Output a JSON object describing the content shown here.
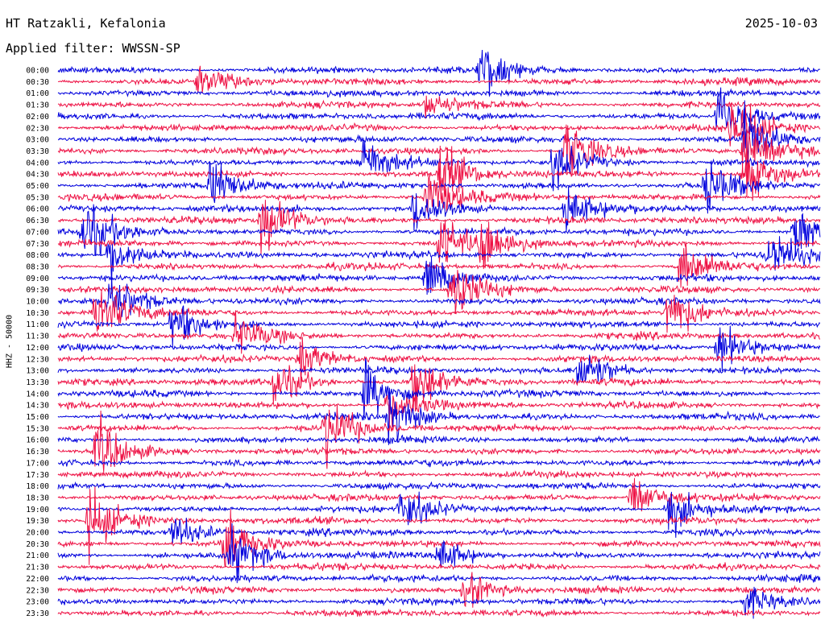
{
  "header": {
    "station": "HT Ratzakli, Kefalonia",
    "date": "2025-10-03",
    "filter": "Applied filter: WWSSN-SP"
  },
  "chart_data": {
    "type": "line",
    "title": "HT Ratzakli, Kefalonia",
    "ylabel": "HHZ - 50000",
    "rows": [
      "00:00",
      "00:30",
      "01:00",
      "01:30",
      "02:00",
      "02:30",
      "03:00",
      "03:30",
      "04:00",
      "04:30",
      "05:00",
      "05:30",
      "06:00",
      "06:30",
      "07:00",
      "07:30",
      "08:00",
      "08:30",
      "09:00",
      "09:30",
      "10:00",
      "10:30",
      "11:00",
      "11:30",
      "12:00",
      "12:30",
      "13:00",
      "13:30",
      "14:00",
      "14:30",
      "15:00",
      "15:30",
      "16:00",
      "16:30",
      "17:00",
      "17:30",
      "18:00",
      "18:30",
      "19:00",
      "19:30",
      "20:00",
      "20:30",
      "21:00",
      "21:30",
      "22:00",
      "22:30",
      "23:00",
      "23:30"
    ],
    "series_colors": [
      "#0000dd",
      "#ee1144"
    ],
    "x_minutes_per_row": 30,
    "events": [
      {
        "row": 0,
        "minute": 16.6,
        "amp": 1.4
      },
      {
        "row": 1,
        "minute": 5.5,
        "amp": 0.8
      },
      {
        "row": 3,
        "minute": 14.5,
        "amp": 0.7
      },
      {
        "row": 4,
        "minute": 26.0,
        "amp": 1.6
      },
      {
        "row": 5,
        "minute": 26.5,
        "amp": 1.8
      },
      {
        "row": 6,
        "minute": 27.0,
        "amp": 1.8
      },
      {
        "row": 7,
        "minute": 20.0,
        "amp": 1.5
      },
      {
        "row": 7,
        "minute": 27.0,
        "amp": 1.7
      },
      {
        "row": 8,
        "minute": 12.0,
        "amp": 1.2
      },
      {
        "row": 8,
        "minute": 19.5,
        "amp": 1.3
      },
      {
        "row": 9,
        "minute": 15.0,
        "amp": 1.6
      },
      {
        "row": 9,
        "minute": 27.0,
        "amp": 1.5
      },
      {
        "row": 10,
        "minute": 6.0,
        "amp": 1.4
      },
      {
        "row": 10,
        "minute": 25.5,
        "amp": 1.3
      },
      {
        "row": 11,
        "minute": 14.5,
        "amp": 1.5
      },
      {
        "row": 12,
        "minute": 14.0,
        "amp": 1.3
      },
      {
        "row": 12,
        "minute": 20.0,
        "amp": 1.2
      },
      {
        "row": 13,
        "minute": 8.0,
        "amp": 1.6
      },
      {
        "row": 14,
        "minute": 1.0,
        "amp": 1.6
      },
      {
        "row": 14,
        "minute": 29.0,
        "amp": 1.5
      },
      {
        "row": 15,
        "minute": 15.0,
        "amp": 1.4
      },
      {
        "row": 15,
        "minute": 16.6,
        "amp": 1.4
      },
      {
        "row": 16,
        "minute": 2.0,
        "amp": 1.3
      },
      {
        "row": 16,
        "minute": 28.0,
        "amp": 1.3
      },
      {
        "row": 17,
        "minute": 24.5,
        "amp": 1.4
      },
      {
        "row": 18,
        "minute": 14.5,
        "amp": 1.3
      },
      {
        "row": 19,
        "minute": 15.5,
        "amp": 1.6
      },
      {
        "row": 20,
        "minute": 2.0,
        "amp": 1.4
      },
      {
        "row": 21,
        "minute": 1.5,
        "amp": 1.8
      },
      {
        "row": 21,
        "minute": 24.0,
        "amp": 1.6
      },
      {
        "row": 22,
        "minute": 4.5,
        "amp": 1.2
      },
      {
        "row": 23,
        "minute": 7.0,
        "amp": 1.0
      },
      {
        "row": 24,
        "minute": 26.0,
        "amp": 1.2
      },
      {
        "row": 25,
        "minute": 9.5,
        "amp": 1.0
      },
      {
        "row": 26,
        "minute": 20.5,
        "amp": 1.4
      },
      {
        "row": 27,
        "minute": 14.0,
        "amp": 1.5
      },
      {
        "row": 27,
        "minute": 8.5,
        "amp": 1.2
      },
      {
        "row": 28,
        "minute": 12.0,
        "amp": 1.5
      },
      {
        "row": 29,
        "minute": 13.0,
        "amp": 1.2
      },
      {
        "row": 30,
        "minute": 13.0,
        "amp": 1.6
      },
      {
        "row": 31,
        "minute": 10.5,
        "amp": 1.7
      },
      {
        "row": 33,
        "minute": 1.5,
        "amp": 1.6
      },
      {
        "row": 37,
        "minute": 22.5,
        "amp": 1.3
      },
      {
        "row": 38,
        "minute": 13.5,
        "amp": 1.3
      },
      {
        "row": 38,
        "minute": 24.0,
        "amp": 1.3
      },
      {
        "row": 39,
        "minute": 1.2,
        "amp": 1.7
      },
      {
        "row": 40,
        "minute": 4.5,
        "amp": 0.9
      },
      {
        "row": 41,
        "minute": 6.5,
        "amp": 1.5
      },
      {
        "row": 42,
        "minute": 6.8,
        "amp": 1.4
      },
      {
        "row": 42,
        "minute": 15.0,
        "amp": 1.0
      },
      {
        "row": 45,
        "minute": 16.0,
        "amp": 1.0
      },
      {
        "row": 46,
        "minute": 27.0,
        "amp": 0.8
      }
    ]
  }
}
